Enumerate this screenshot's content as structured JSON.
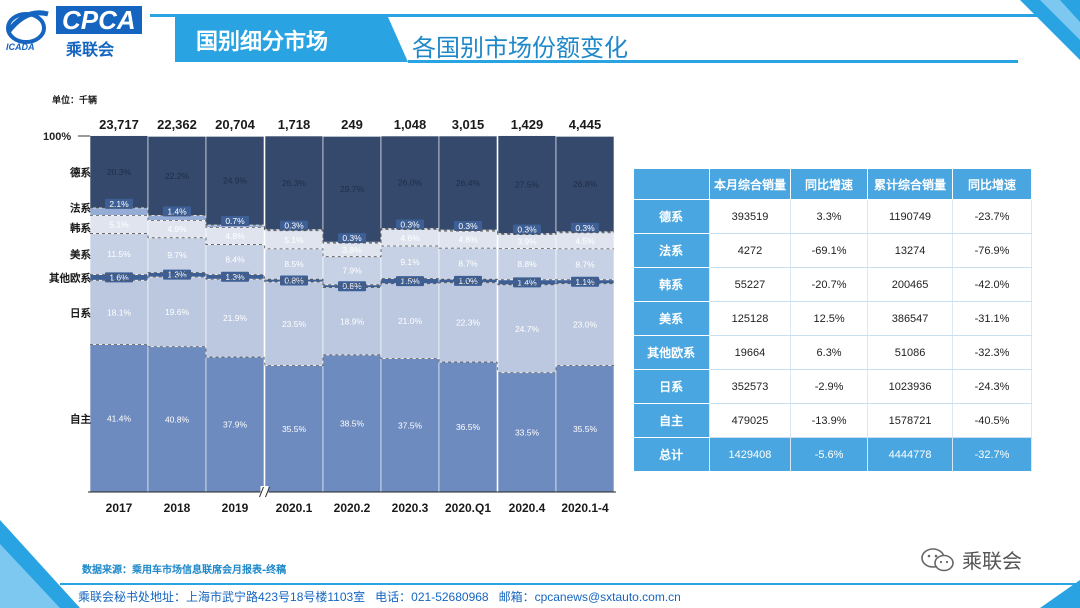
{
  "logo": {
    "brand": "CPCA",
    "brand_cn": "乘联会",
    "sub": "ICADA"
  },
  "header": {
    "section_title": "国别细分市场",
    "slide_title": "各国别市场份额变化"
  },
  "unit_label": "单位：千辆",
  "colors": {
    "accent": "#29a3e2",
    "series": [
      "#6e8bbf",
      "#bcc8e0",
      "#3d5f95",
      "#c7d1e5",
      "#dfe4ef",
      "#95acd6",
      "#34496b"
    ],
    "label_light": "#ffffff",
    "label_dark": "#1f2d4a"
  },
  "chart_data": {
    "type": "bar",
    "stacked": "percent",
    "title": "各国别市场份额变化",
    "categories": [
      "2017",
      "2018",
      "2019",
      "2020.1",
      "2020.2",
      "2020.3",
      "2020.Q1",
      "2020.4",
      "2020.1-4"
    ],
    "totals": [
      "23,717",
      "22,362",
      "20,704",
      "1,718",
      "249",
      "1,048",
      "3,015",
      "1,429",
      "4,445"
    ],
    "top_label": "100%",
    "axis_break_after": "2019",
    "series": [
      {
        "name": "自主",
        "values": [
          41.4,
          40.8,
          37.9,
          35.5,
          38.5,
          37.5,
          36.5,
          33.5,
          35.5
        ]
      },
      {
        "name": "日系",
        "values": [
          18.1,
          19.6,
          21.9,
          23.5,
          18.9,
          21.0,
          22.3,
          24.7,
          23.0
        ]
      },
      {
        "name": "其他欧系",
        "values": [
          1.6,
          1.3,
          1.3,
          0.8,
          0.8,
          1.5,
          1.0,
          1.4,
          1.1
        ]
      },
      {
        "name": "美系",
        "values": [
          11.5,
          9.7,
          8.4,
          8.5,
          7.9,
          9.1,
          8.7,
          8.8,
          8.7
        ]
      },
      {
        "name": "韩系",
        "values": [
          5.1,
          4.9,
          4.8,
          5.1,
          3.8,
          4.6,
          4.8,
          3.9,
          4.5
        ]
      },
      {
        "name": "法系",
        "values": [
          2.1,
          1.4,
          0.7,
          0.3,
          0.3,
          0.3,
          0.3,
          0.3,
          0.3
        ]
      },
      {
        "name": "德系",
        "values": [
          20.3,
          22.2,
          24.9,
          26.3,
          29.7,
          26.0,
          26.4,
          27.5,
          26.8
        ]
      }
    ],
    "ylim": [
      0,
      100
    ]
  },
  "table": {
    "headers": [
      "",
      "本月综合销量",
      "同比增速",
      "累计综合销量",
      "同比增速"
    ],
    "rows": [
      {
        "label": "德系",
        "cells": [
          "393519",
          "3.3%",
          "1190749",
          "-23.7%"
        ]
      },
      {
        "label": "法系",
        "cells": [
          "4272",
          "-69.1%",
          "13274",
          "-76.9%"
        ]
      },
      {
        "label": "韩系",
        "cells": [
          "55227",
          "-20.7%",
          "200465",
          "-42.0%"
        ]
      },
      {
        "label": "美系",
        "cells": [
          "125128",
          "12.5%",
          "386547",
          "-31.1%"
        ]
      },
      {
        "label": "其他欧系",
        "cells": [
          "19664",
          "6.3%",
          "51086",
          "-32.3%"
        ]
      },
      {
        "label": "日系",
        "cells": [
          "352573",
          "-2.9%",
          "1023936",
          "-24.3%"
        ]
      },
      {
        "label": "自主",
        "cells": [
          "479025",
          "-13.9%",
          "1578721",
          "-40.5%"
        ]
      }
    ],
    "total": {
      "label": "总计",
      "cells": [
        "1429408",
        "-5.6%",
        "4444778",
        "-32.7%"
      ]
    }
  },
  "source_note": "数据来源：乘用车市场信息联席会月报表-终稿",
  "watermark": "乘联会",
  "footer": "乘联会秘书处地址：上海市武宁路423号18号楼1103室   电话：021-52680968   邮箱：cpcanews@sxtauto.com.cn"
}
